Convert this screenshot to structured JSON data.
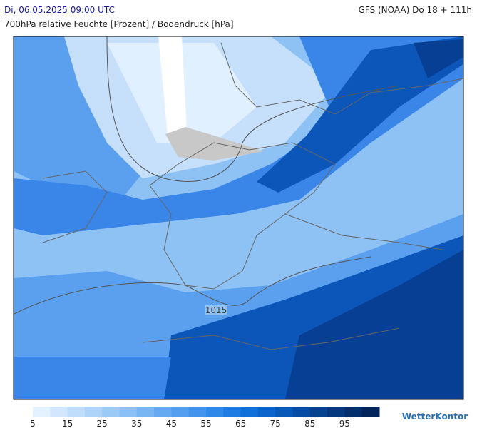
{
  "header": {
    "left": "Di, 06.05.2025 09:00 UTC",
    "right": "GFS (NOAA) Do 18 + 111h",
    "subtitle": "700hPa relative Feuchte [Prozent] / Bodendruck [hPa]"
  },
  "map": {
    "isobar_label": "1015"
  },
  "legend": {
    "colors": [
      "#e4f1ff",
      "#d2e7fd",
      "#c0defb",
      "#aed4f9",
      "#9ccaf7",
      "#8ac0f5",
      "#78b5f3",
      "#66aaf1",
      "#549fef",
      "#4294ec",
      "#3088e8",
      "#1f7ce3",
      "#1270da",
      "#0b64cc",
      "#0858b8",
      "#064ca4",
      "#054290",
      "#04387e",
      "#032e6c",
      "#02245a"
    ],
    "labels": [
      5,
      15,
      25,
      35,
      45,
      55,
      65,
      75,
      85,
      95
    ]
  },
  "brand": "WetterKontor"
}
